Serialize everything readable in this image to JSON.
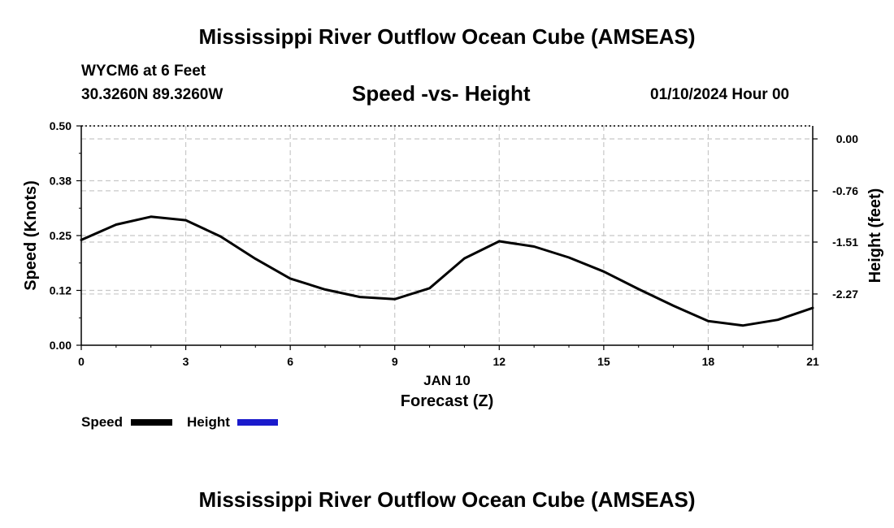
{
  "header": {
    "main_title": "Mississippi River Outflow Ocean Cube (AMSEAS)",
    "station": "WYCM6 at 6 Feet",
    "coords": "30.3260N  89.3260W",
    "chart_title": "Speed -vs- Height",
    "date": "01/10/2024 Hour 00"
  },
  "legend": {
    "speed_label": "Speed",
    "height_label": "Height",
    "speed_color": "#000000",
    "height_color": "#1a1acc"
  },
  "footer": {
    "bottom_title": "Mississippi River Outflow Ocean Cube (AMSEAS)"
  },
  "chart_data": {
    "type": "line",
    "title": "Speed -vs- Height",
    "xlabel": "Forecast (Z)",
    "xsublabel": "JAN 10",
    "ylabel": "Speed (Knots)",
    "y2label": "Height (feet)",
    "xlim": [
      0,
      21
    ],
    "ylim": [
      0,
      0.5
    ],
    "y2lim": [
      -3.02,
      0.19
    ],
    "xticks": [
      0,
      3,
      6,
      9,
      12,
      15,
      18,
      21
    ],
    "yticks": [
      0.0,
      0.125,
      0.25,
      0.375,
      0.5
    ],
    "ytick_labels": [
      "0.00",
      "0.12",
      "0.25",
      "0.38",
      "0.50"
    ],
    "y2ticks": [
      0.0,
      -0.76,
      -1.51,
      -2.27
    ],
    "y2tick_labels": [
      "0.00",
      "-0.76",
      "-1.51",
      "-2.27"
    ],
    "grid": true,
    "series": [
      {
        "name": "Speed",
        "color": "#000000",
        "x": [
          0,
          1,
          2,
          3,
          4,
          5,
          6,
          7,
          8,
          9,
          10,
          11,
          12,
          13,
          14,
          15,
          16,
          17,
          18,
          19,
          20,
          21
        ],
        "values": [
          0.24,
          0.275,
          0.293,
          0.285,
          0.248,
          0.197,
          0.152,
          0.127,
          0.11,
          0.105,
          0.13,
          0.198,
          0.237,
          0.225,
          0.2,
          0.168,
          0.128,
          0.09,
          0.055,
          0.045,
          0.058,
          0.085
        ]
      },
      {
        "name": "Height",
        "color": "#1a1acc",
        "x": [],
        "values": []
      }
    ]
  }
}
